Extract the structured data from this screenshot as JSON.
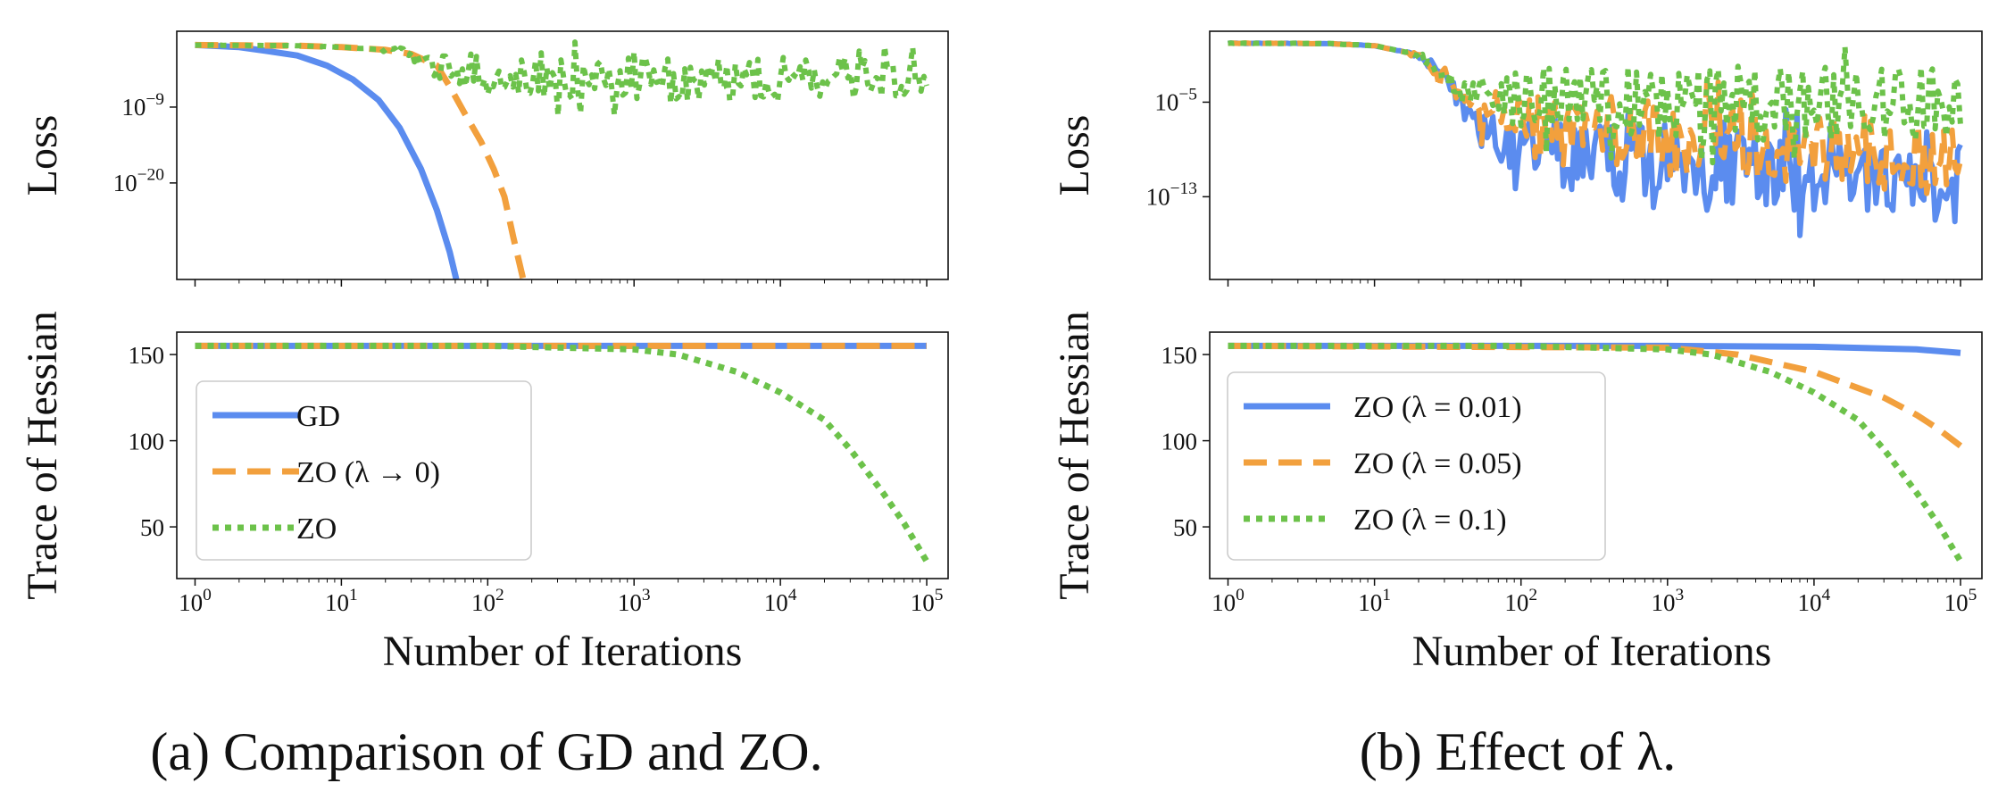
{
  "figure": {
    "captions": [
      "(a) Comparison of GD and ZO.",
      "(b) Effect of λ."
    ]
  },
  "chart_data": [
    {
      "panel": "a",
      "type": "line",
      "subplots": [
        {
          "id": "loss",
          "ylabel": "Loss",
          "yscale": "log",
          "ylim": [
            1e-34,
            100.0
          ],
          "yticks": [
            {
              "value": 1e-09,
              "base": "10",
              "exp": "−9"
            },
            {
              "value": 1e-20,
              "base": "10",
              "exp": "−20"
            }
          ],
          "series": [
            {
              "name": "GD",
              "color": "#5B8CEF",
              "style": "solid",
              "x": [
                1,
                2,
                3,
                5,
                8,
                12,
                18,
                25,
                35,
                45,
                55,
                61
              ],
              "y": [
                1.0,
                0.5,
                0.15,
                0.03,
                0.001,
                1e-05,
                1e-08,
                1e-12,
                1e-18,
                1e-24,
                1e-30,
                1e-34
              ]
            },
            {
              "name": "ZO (λ → 0)",
              "color": "#F2A03D",
              "style": "dashed",
              "x": [
                1,
                5,
                10,
                20,
                30,
                45,
                55,
                70,
                90,
                110,
                130,
                150,
                175
              ],
              "y": [
                1.0,
                0.8,
                0.5,
                0.2,
                0.05,
                0.001,
                1e-06,
                1e-10,
                1e-14,
                1e-18,
                1e-22,
                1e-28,
                1e-34
              ]
            },
            {
              "name": "ZO",
              "color": "#6CC24A",
              "style": "dotted",
              "noisy": true,
              "x": [
                1,
                5,
                10,
                20,
                30,
                50,
                100,
                1000,
                10000,
                100000
              ],
              "y": [
                1.0,
                0.8,
                0.5,
                0.2,
                0.05,
                0.0001,
                1e-05,
                1e-05,
                1e-05,
                1e-05
              ]
            }
          ]
        },
        {
          "id": "trace",
          "ylabel": "Trace of Hessian",
          "yscale": "linear",
          "ylim": [
            20,
            163
          ],
          "yticks": [
            {
              "value": 50,
              "label": "50"
            },
            {
              "value": 100,
              "label": "100"
            },
            {
              "value": 150,
              "label": "150"
            }
          ],
          "series": [
            {
              "name": "GD",
              "color": "#5B8CEF",
              "style": "solid",
              "x": [
                1,
                100000
              ],
              "y": [
                155,
                155
              ]
            },
            {
              "name": "ZO (λ → 0)",
              "color": "#F2A03D",
              "style": "dashed",
              "x": [
                1,
                100000
              ],
              "y": [
                155,
                155
              ]
            },
            {
              "name": "ZO",
              "color": "#6CC24A",
              "style": "dotted",
              "x": [
                1,
                100,
                1000,
                2000,
                5000,
                10000,
                20000,
                30000,
                50000,
                70000,
                100000
              ],
              "y": [
                155,
                155,
                153,
                150,
                140,
                128,
                112,
                95,
                70,
                52,
                30
              ]
            }
          ],
          "legend": {
            "placement": "lower-left"
          }
        }
      ],
      "xlabel": "Number of Iterations",
      "xscale": "log",
      "xlim": [
        0.75,
        140000
      ],
      "xticks": [
        {
          "value": 1,
          "base": "10",
          "exp": "0"
        },
        {
          "value": 10,
          "base": "10",
          "exp": "1"
        },
        {
          "value": 100,
          "base": "10",
          "exp": "2"
        },
        {
          "value": 1000,
          "base": "10",
          "exp": "3"
        },
        {
          "value": 10000,
          "base": "10",
          "exp": "4"
        },
        {
          "value": 100000,
          "base": "10",
          "exp": "5"
        }
      ],
      "legend_entries": [
        {
          "label": "GD",
          "color": "#5B8CEF",
          "style": "solid"
        },
        {
          "label": "ZO (λ → 0)",
          "color": "#F2A03D",
          "style": "dashed"
        },
        {
          "label": "ZO",
          "color": "#6CC24A",
          "style": "dotted"
        }
      ]
    },
    {
      "panel": "b",
      "type": "line",
      "subplots": [
        {
          "id": "loss",
          "ylabel": "Loss",
          "yscale": "log",
          "ylim": [
            1e-20,
            10.0
          ],
          "yticks": [
            {
              "value": 1e-05,
              "base": "10",
              "exp": "−5"
            },
            {
              "value": 1e-13,
              "base": "10",
              "exp": "−13"
            }
          ],
          "series": [
            {
              "name": "ZO (λ = 0.01)",
              "color": "#5B8CEF",
              "style": "solid",
              "noisy": true,
              "x": [
                1,
                5,
                10,
                20,
                30,
                50,
                100,
                1000,
                10000,
                100000
              ],
              "y": [
                1.0,
                0.9,
                0.6,
                0.1,
                0.001,
                1e-07,
                1e-09,
                1e-10,
                1e-11,
                1e-12
              ]
            },
            {
              "name": "ZO (λ = 0.05)",
              "color": "#F2A03D",
              "style": "dashed",
              "noisy": true,
              "x": [
                1,
                5,
                10,
                20,
                30,
                50,
                100,
                1000,
                10000,
                100000
              ],
              "y": [
                1.0,
                0.9,
                0.6,
                0.1,
                0.001,
                1e-06,
                1e-07,
                1e-08,
                1e-09,
                1e-10
              ]
            },
            {
              "name": "ZO (λ = 0.1)",
              "color": "#6CC24A",
              "style": "dotted",
              "noisy": true,
              "x": [
                1,
                5,
                10,
                20,
                30,
                50,
                100,
                1000,
                10000,
                100000
              ],
              "y": [
                1.0,
                0.9,
                0.6,
                0.1,
                0.001,
                1e-05,
                1e-05,
                1e-05,
                1e-05,
                1e-05
              ]
            }
          ]
        },
        {
          "id": "trace",
          "ylabel": "Trace of Hessian",
          "yscale": "linear",
          "ylim": [
            20,
            163
          ],
          "yticks": [
            {
              "value": 50,
              "label": "50"
            },
            {
              "value": 100,
              "label": "100"
            },
            {
              "value": 150,
              "label": "150"
            }
          ],
          "series": [
            {
              "name": "ZO (λ = 0.01)",
              "color": "#5B8CEF",
              "style": "solid",
              "x": [
                1,
                1000,
                10000,
                50000,
                100000
              ],
              "y": [
                155,
                155,
                154.5,
                153,
                151
              ]
            },
            {
              "name": "ZO (λ = 0.05)",
              "color": "#F2A03D",
              "style": "dashed",
              "x": [
                1,
                1000,
                3000,
                10000,
                30000,
                50000,
                70000,
                100000
              ],
              "y": [
                155,
                154,
                150,
                140,
                125,
                115,
                107,
                97
              ]
            },
            {
              "name": "ZO (λ = 0.1)",
              "color": "#6CC24A",
              "style": "dotted",
              "x": [
                1,
                100,
                1000,
                2000,
                5000,
                10000,
                20000,
                30000,
                50000,
                70000,
                100000
              ],
              "y": [
                155,
                155,
                153,
                150,
                140,
                128,
                112,
                95,
                70,
                52,
                30
              ]
            }
          ],
          "legend": {
            "placement": "left"
          }
        }
      ],
      "xlabel": "Number of Iterations",
      "xscale": "log",
      "xlim": [
        0.75,
        140000
      ],
      "xticks": [
        {
          "value": 1,
          "base": "10",
          "exp": "0"
        },
        {
          "value": 10,
          "base": "10",
          "exp": "1"
        },
        {
          "value": 100,
          "base": "10",
          "exp": "2"
        },
        {
          "value": 1000,
          "base": "10",
          "exp": "3"
        },
        {
          "value": 10000,
          "base": "10",
          "exp": "4"
        },
        {
          "value": 100000,
          "base": "10",
          "exp": "5"
        }
      ],
      "legend_entries": [
        {
          "label": "ZO (λ = 0.01)",
          "color": "#5B8CEF",
          "style": "solid"
        },
        {
          "label": "ZO (λ = 0.05)",
          "color": "#F2A03D",
          "style": "dashed"
        },
        {
          "label": "ZO (λ = 0.1)",
          "color": "#6CC24A",
          "style": "dotted"
        }
      ]
    }
  ]
}
